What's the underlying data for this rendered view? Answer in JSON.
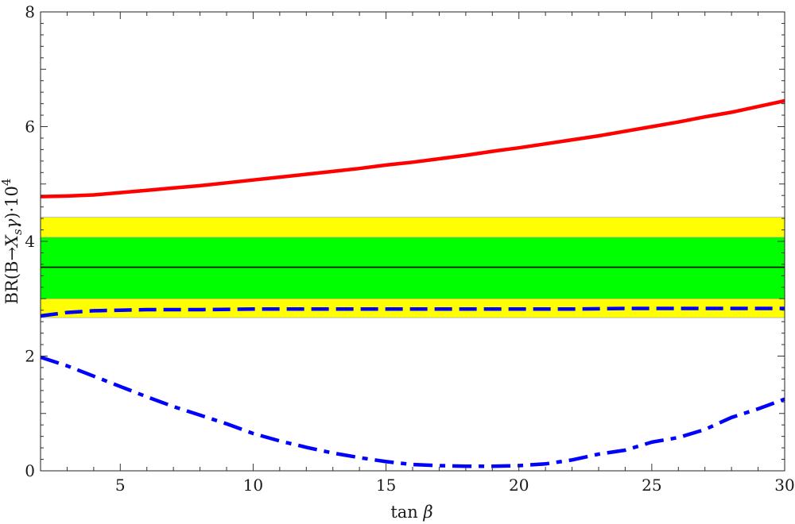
{
  "chart_data": {
    "type": "line",
    "xlabel_parts": {
      "pre": "tan ",
      "sym": "β"
    },
    "ylabel_parts": {
      "pre": "BR(B→",
      "x": "X",
      "sub": "s",
      "gamma": "γ",
      "post": ")·10",
      "sup": "4"
    },
    "xlim": [
      2,
      30
    ],
    "ylim": [
      0,
      8
    ],
    "x_ticks": [
      5,
      10,
      15,
      20,
      25,
      30
    ],
    "y_ticks": [
      0,
      2,
      4,
      6,
      8
    ],
    "bands": [
      {
        "from": 2.67,
        "to": 4.42,
        "color": "#ffff00"
      },
      {
        "from": 3.0,
        "to": 4.07,
        "color": "#00ff00"
      }
    ],
    "reference_line": {
      "y": 3.55,
      "color": "#000000"
    },
    "series": [
      {
        "color": "#ff0000",
        "style": "solid",
        "x": [
          2,
          3,
          4,
          5,
          6,
          7,
          8,
          9,
          10,
          11,
          12,
          13,
          14,
          15,
          16,
          17,
          18,
          19,
          20,
          21,
          22,
          23,
          24,
          25,
          26,
          27,
          28,
          29,
          30
        ],
        "y": [
          4.78,
          4.79,
          4.81,
          4.85,
          4.89,
          4.93,
          4.97,
          5.02,
          5.07,
          5.12,
          5.17,
          5.22,
          5.27,
          5.33,
          5.38,
          5.44,
          5.5,
          5.57,
          5.63,
          5.7,
          5.77,
          5.84,
          5.92,
          6.0,
          6.08,
          6.17,
          6.25,
          6.35,
          6.45
        ]
      },
      {
        "color": "#0000ff",
        "style": "dashed",
        "x": [
          2,
          3,
          4,
          5,
          6,
          8,
          10,
          12,
          14,
          16,
          18,
          20,
          22,
          24,
          26,
          28,
          30
        ],
        "y": [
          2.7,
          2.76,
          2.79,
          2.8,
          2.81,
          2.81,
          2.82,
          2.82,
          2.82,
          2.82,
          2.82,
          2.82,
          2.82,
          2.83,
          2.83,
          2.83,
          2.83
        ]
      },
      {
        "color": "#0000ff",
        "style": "dashdot",
        "x": [
          2,
          3,
          4,
          5,
          6,
          7,
          8,
          9,
          10,
          11,
          12,
          13,
          14,
          15,
          16,
          17,
          18,
          19,
          20,
          21,
          22,
          23,
          24,
          25,
          26,
          27,
          28,
          29,
          30
        ],
        "y": [
          1.98,
          1.83,
          1.65,
          1.47,
          1.29,
          1.12,
          0.97,
          0.82,
          0.65,
          0.52,
          0.41,
          0.31,
          0.23,
          0.16,
          0.11,
          0.09,
          0.08,
          0.08,
          0.09,
          0.12,
          0.19,
          0.29,
          0.36,
          0.5,
          0.58,
          0.72,
          0.93,
          1.08,
          1.25
        ]
      }
    ]
  }
}
